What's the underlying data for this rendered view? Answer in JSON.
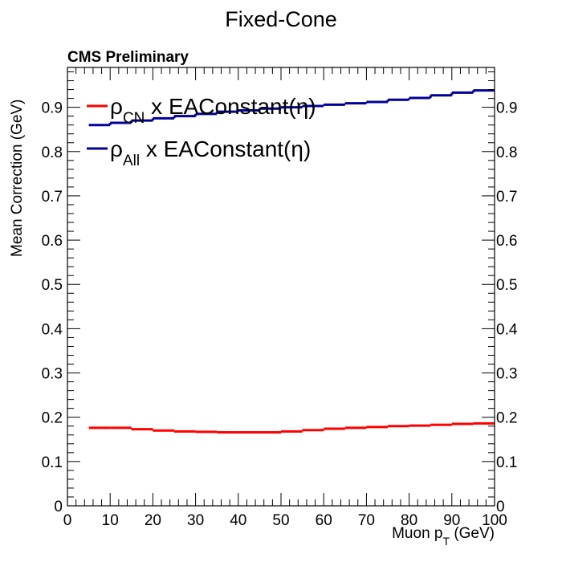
{
  "chart_data": {
    "type": "line",
    "title": "Fixed-Cone",
    "label": "CMS Preliminary",
    "xlabel": {
      "main": "Muon p",
      "sub": "T",
      "suffix": " (GeV)"
    },
    "ylabel": "Mean Correction (GeV)",
    "xlim": [
      0,
      100
    ],
    "ylim": [
      0,
      0.99
    ],
    "x_ticks": [
      0,
      10,
      20,
      30,
      40,
      50,
      60,
      70,
      80,
      90,
      100
    ],
    "y_ticks": [
      0,
      0.1,
      0.2,
      0.3,
      0.4,
      0.5,
      0.6,
      0.7,
      0.8,
      0.9
    ],
    "y_tick_labels": [
      "0",
      "0.1",
      "0.2",
      "0.3",
      "0.4",
      "0.5",
      "0.6",
      "0.7",
      "0.8",
      "0.9"
    ],
    "grid": false,
    "legend_position": "top-left",
    "bin_edges": [
      5,
      10,
      15,
      20,
      25,
      30,
      35,
      40,
      45,
      50,
      55,
      60,
      65,
      70,
      75,
      80,
      85,
      90,
      95,
      100
    ],
    "series": [
      {
        "legend": {
          "symbol": "ρ",
          "sub": "CN",
          "text": " x EAConstant(η)"
        },
        "color": "#ff0000",
        "values": [
          0.176,
          0.176,
          0.173,
          0.17,
          0.168,
          0.167,
          0.166,
          0.166,
          0.166,
          0.168,
          0.171,
          0.174,
          0.176,
          0.178,
          0.18,
          0.181,
          0.183,
          0.185,
          0.186
        ]
      },
      {
        "legend": {
          "symbol": "ρ",
          "sub": "All",
          "text": " x EAConstant(η)"
        },
        "color": "#000099",
        "values": [
          0.86,
          0.865,
          0.87,
          0.875,
          0.88,
          0.885,
          0.89,
          0.893,
          0.897,
          0.9,
          0.903,
          0.906,
          0.909,
          0.912,
          0.917,
          0.921,
          0.927,
          0.933,
          0.938
        ]
      }
    ]
  }
}
